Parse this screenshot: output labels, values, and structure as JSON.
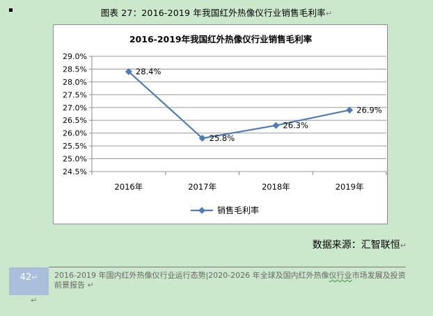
{
  "figure_caption": "图表 27：2016-2019 年我国红外热像仪行业销售毛利率",
  "source": "数据来源：汇智联恒",
  "page_number": "42",
  "footer": {
    "text_before": "2016-2019 年国内红外热像仪行业运行态势|2020-2026 年全球及国内红外热像",
    "text_wavy": "仪行业",
    "text_after": "市场发展及投资前景报告"
  },
  "chart_data": {
    "type": "line",
    "title": "2016-2019年我国红外热像仪行业销售毛利率",
    "categories": [
      "2016年",
      "2017年",
      "2018年",
      "2019年"
    ],
    "series": [
      {
        "name": "销售毛利率",
        "values": [
          28.4,
          25.8,
          26.3,
          26.9
        ],
        "labels": [
          "28.4%",
          "25.8%",
          "26.3%",
          "26.9%"
        ],
        "color": "#4f7cb4"
      }
    ],
    "yticks": [
      "24.5%",
      "25.0%",
      "25.5%",
      "26.0%",
      "26.5%",
      "27.0%",
      "27.5%",
      "28.0%",
      "28.5%",
      "29.0%"
    ],
    "ylim": [
      24.5,
      29.0
    ],
    "grid": true,
    "legend_position": "bottom"
  }
}
